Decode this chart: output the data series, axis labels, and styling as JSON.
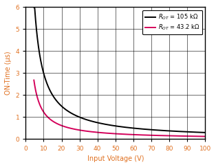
{
  "xlabel": "Input Voltage (V)",
  "ylabel": "ON-Time (μs)",
  "xlim": [
    0,
    100
  ],
  "ylim": [
    0,
    6
  ],
  "xticks": [
    0,
    10,
    20,
    30,
    40,
    50,
    60,
    70,
    80,
    90,
    100
  ],
  "yticks": [
    0,
    1,
    2,
    3,
    4,
    5,
    6
  ],
  "curve1_color": "#000000",
  "curve2_color": "#d4005a",
  "curve1_label": "$R_{OT}$ = 105 k$\\Omega$",
  "curve2_label": "$R_{OT}$ = 43.2 k$\\Omega$",
  "curve1_R": 105.0,
  "curve2_R": 43.2,
  "k_constant": 0.2857,
  "x1_start": 4.6,
  "x2_start": 4.6,
  "background_color": "#ffffff",
  "grid_color": "#000000",
  "tick_label_color": "#e07020",
  "axis_label_color": "#e07020",
  "linewidth": 1.4
}
